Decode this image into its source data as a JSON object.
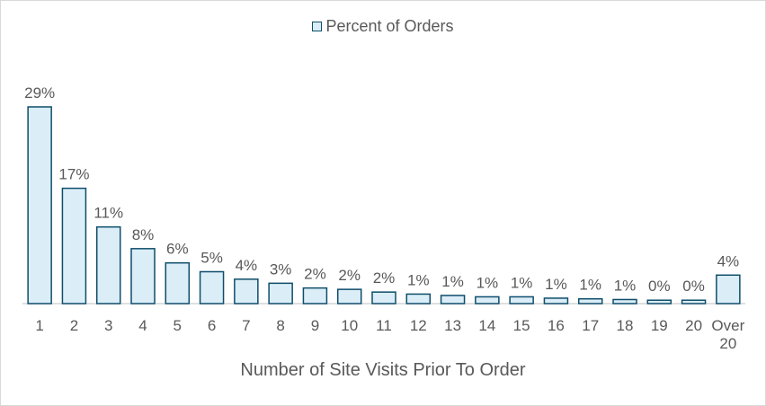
{
  "chart_data": {
    "type": "bar",
    "categories": [
      "1",
      "2",
      "3",
      "4",
      "5",
      "6",
      "7",
      "8",
      "9",
      "10",
      "11",
      "12",
      "13",
      "14",
      "15",
      "16",
      "17",
      "18",
      "19",
      "20",
      "Over 20"
    ],
    "series": [
      {
        "name": "Percent of Orders",
        "values": [
          29,
          17,
          11,
          8,
          6,
          5,
          4,
          3,
          2,
          2,
          2,
          1,
          1,
          1,
          1,
          1,
          1,
          1,
          0,
          0,
          4
        ],
        "bar_values": [
          29,
          17,
          11.3,
          8.1,
          6,
          4.7,
          3.6,
          3.0,
          2.3,
          2.1,
          1.7,
          1.4,
          1.2,
          1.0,
          1.0,
          0.8,
          0.7,
          0.6,
          0.5,
          0.5,
          4.2
        ],
        "data_labels": [
          "29%",
          "17%",
          "11%",
          "8%",
          "6%",
          "5%",
          "4%",
          "3%",
          "2%",
          "2%",
          "2%",
          "1%",
          "1%",
          "1%",
          "1%",
          "1%",
          "1%",
          "1%",
          "0%",
          "0%",
          "4%"
        ]
      }
    ],
    "xlabel": "Number of Site Visits Prior To Order",
    "ylabel": "",
    "ylim": [
      0,
      30
    ],
    "grid": false,
    "legend_position": "top-center",
    "colors": {
      "bar_fill": "#dbeef8",
      "bar_stroke": "#0e4d6a",
      "text": "#595959",
      "axis": "#bfbfbf"
    }
  }
}
